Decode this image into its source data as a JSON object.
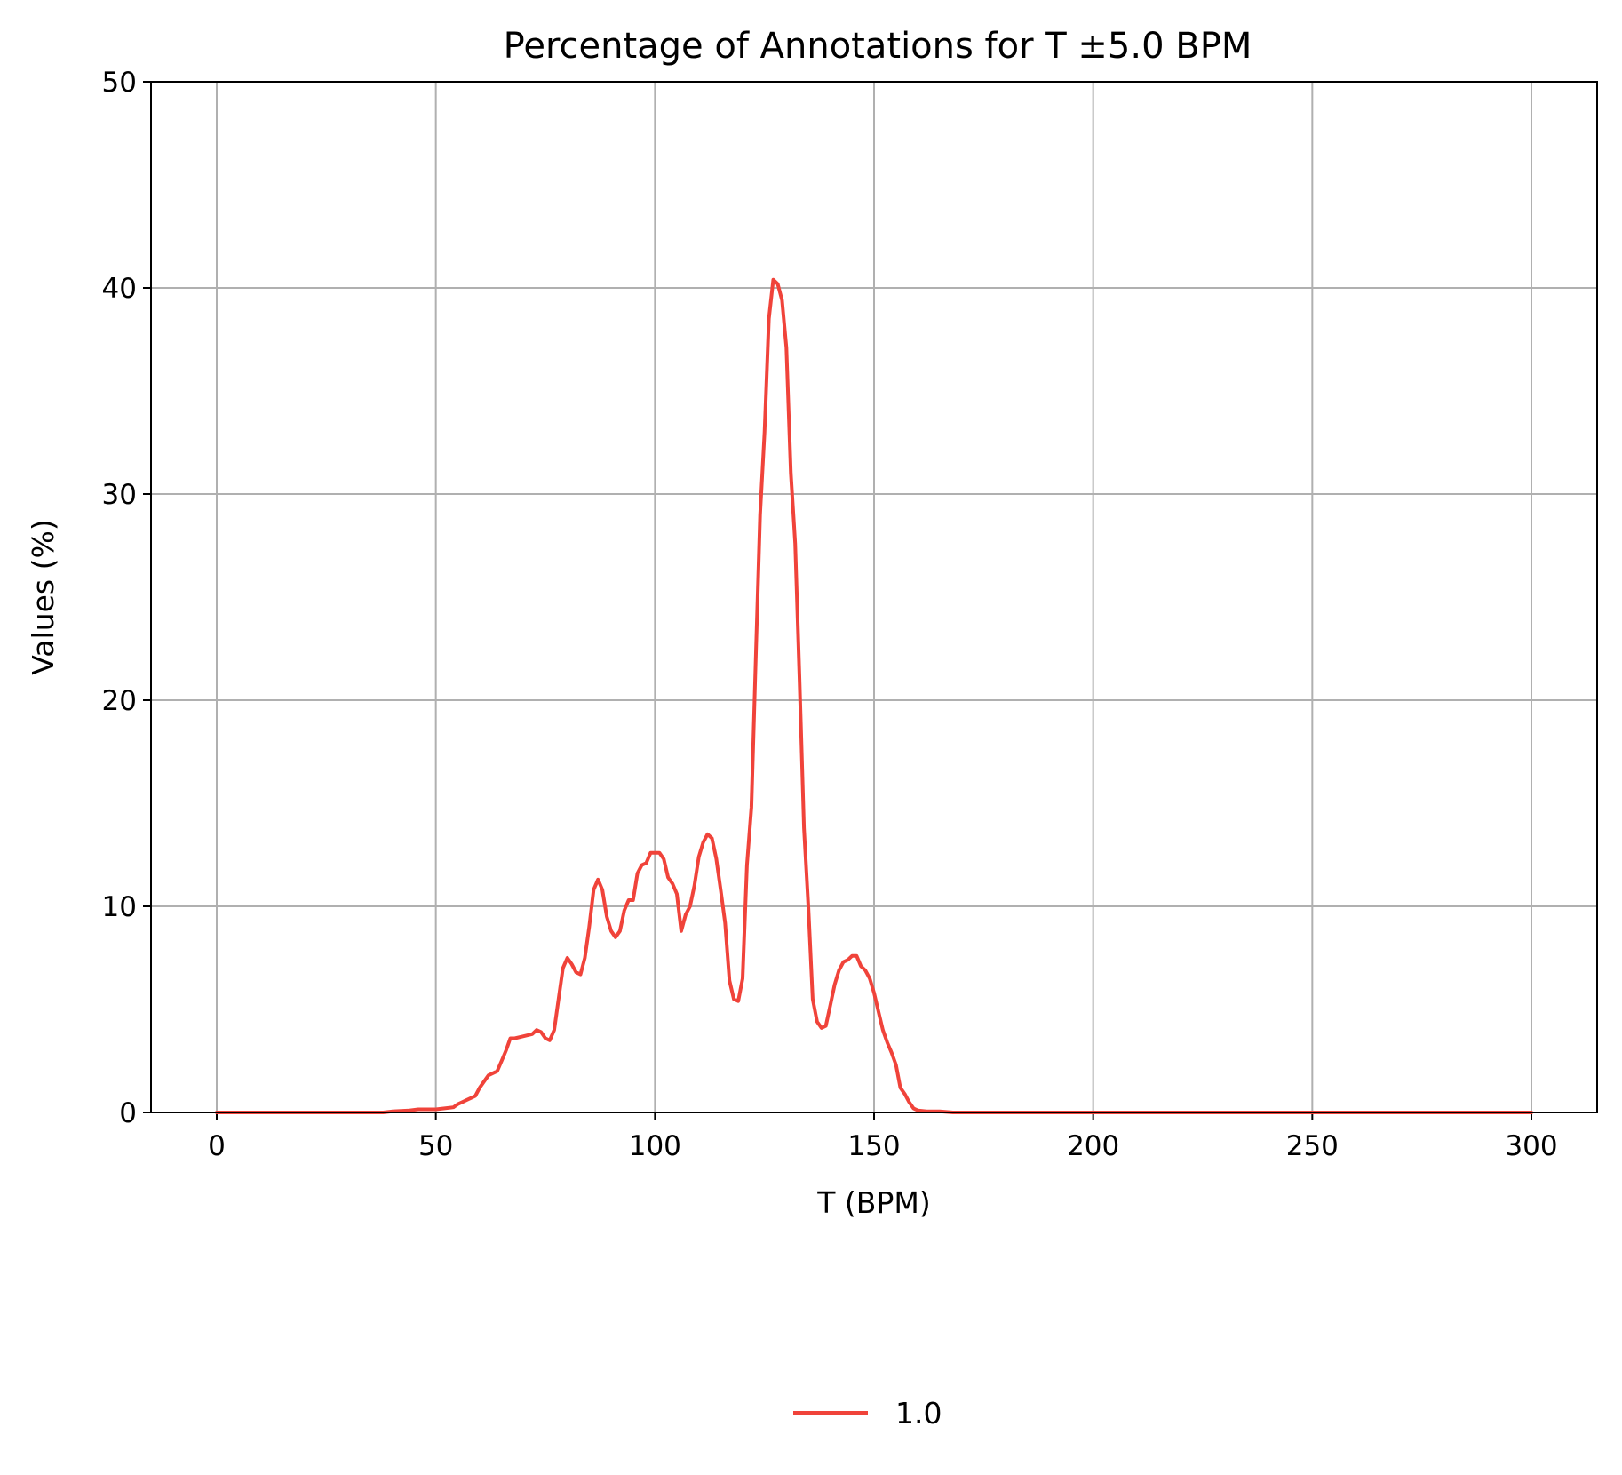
{
  "chart_data": {
    "type": "line",
    "title": "Percentage of Annotations for T ±5.0 BPM",
    "xlabel": "T (BPM)",
    "ylabel": "Values (%)",
    "xlim": [
      -15,
      315
    ],
    "ylim": [
      0,
      50
    ],
    "xticks": [
      0,
      50,
      100,
      150,
      200,
      250,
      300
    ],
    "yticks": [
      0,
      10,
      20,
      30,
      40,
      50
    ],
    "grid": true,
    "legend_position": "bottom-center",
    "series": [
      {
        "name": "1.0",
        "color": "#f0433a",
        "points": [
          [
            0,
            0
          ],
          [
            10,
            0
          ],
          [
            20,
            0
          ],
          [
            30,
            0
          ],
          [
            38,
            0
          ],
          [
            40,
            0.05
          ],
          [
            44,
            0.1
          ],
          [
            46,
            0.15
          ],
          [
            50,
            0.15
          ],
          [
            52,
            0.2
          ],
          [
            54,
            0.25
          ],
          [
            55,
            0.4
          ],
          [
            56,
            0.5
          ],
          [
            57,
            0.6
          ],
          [
            58,
            0.7
          ],
          [
            59,
            0.8
          ],
          [
            60,
            1.2
          ],
          [
            61,
            1.5
          ],
          [
            62,
            1.8
          ],
          [
            64,
            2.0
          ],
          [
            65,
            2.5
          ],
          [
            66,
            3.0
          ],
          [
            67,
            3.6
          ],
          [
            68,
            3.6
          ],
          [
            70,
            3.7
          ],
          [
            72,
            3.8
          ],
          [
            73,
            4.0
          ],
          [
            74,
            3.9
          ],
          [
            75,
            3.6
          ],
          [
            76,
            3.5
          ],
          [
            77,
            4.0
          ],
          [
            78,
            5.5
          ],
          [
            79,
            7.0
          ],
          [
            80,
            7.5
          ],
          [
            81,
            7.2
          ],
          [
            82,
            6.8
          ],
          [
            83,
            6.7
          ],
          [
            84,
            7.5
          ],
          [
            85,
            9.0
          ],
          [
            86,
            10.8
          ],
          [
            87,
            11.3
          ],
          [
            88,
            10.8
          ],
          [
            89,
            9.5
          ],
          [
            90,
            8.8
          ],
          [
            91,
            8.5
          ],
          [
            92,
            8.8
          ],
          [
            93,
            9.8
          ],
          [
            94,
            10.3
          ],
          [
            95,
            10.3
          ],
          [
            96,
            11.6
          ],
          [
            97,
            12.0
          ],
          [
            98,
            12.1
          ],
          [
            99,
            12.6
          ],
          [
            100,
            12.6
          ],
          [
            101,
            12.6
          ],
          [
            102,
            12.3
          ],
          [
            103,
            11.4
          ],
          [
            104,
            11.1
          ],
          [
            105,
            10.6
          ],
          [
            106,
            8.8
          ],
          [
            107,
            9.6
          ],
          [
            108,
            10.0
          ],
          [
            109,
            11.0
          ],
          [
            110,
            12.4
          ],
          [
            111,
            13.1
          ],
          [
            112,
            13.5
          ],
          [
            113,
            13.3
          ],
          [
            114,
            12.3
          ],
          [
            115,
            10.8
          ],
          [
            116,
            9.2
          ],
          [
            117,
            6.4
          ],
          [
            118,
            5.5
          ],
          [
            119,
            5.4
          ],
          [
            120,
            6.5
          ],
          [
            121,
            12.0
          ],
          [
            122,
            14.8
          ],
          [
            123,
            22.0
          ],
          [
            124,
            29.0
          ],
          [
            125,
            33.0
          ],
          [
            126,
            38.5
          ],
          [
            127,
            40.4
          ],
          [
            128,
            40.2
          ],
          [
            129,
            39.4
          ],
          [
            130,
            37.1
          ],
          [
            131,
            31.0
          ],
          [
            132,
            27.6
          ],
          [
            133,
            21.0
          ],
          [
            134,
            13.8
          ],
          [
            135,
            10.0
          ],
          [
            136,
            5.5
          ],
          [
            137,
            4.4
          ],
          [
            138,
            4.1
          ],
          [
            139,
            4.2
          ],
          [
            140,
            5.2
          ],
          [
            141,
            6.2
          ],
          [
            142,
            6.9
          ],
          [
            143,
            7.3
          ],
          [
            144,
            7.4
          ],
          [
            145,
            7.6
          ],
          [
            146,
            7.6
          ],
          [
            147,
            7.1
          ],
          [
            148,
            6.9
          ],
          [
            149,
            6.5
          ],
          [
            150,
            5.8
          ],
          [
            151,
            4.9
          ],
          [
            152,
            4.0
          ],
          [
            153,
            3.4
          ],
          [
            154,
            2.9
          ],
          [
            155,
            2.3
          ],
          [
            156,
            1.2
          ],
          [
            157,
            0.9
          ],
          [
            158,
            0.5
          ],
          [
            159,
            0.2
          ],
          [
            160,
            0.1
          ],
          [
            162,
            0.05
          ],
          [
            165,
            0.05
          ],
          [
            168,
            0
          ],
          [
            180,
            0
          ],
          [
            200,
            0
          ],
          [
            220,
            0
          ],
          [
            240,
            0
          ],
          [
            260,
            0
          ],
          [
            280,
            0
          ],
          [
            300,
            0
          ]
        ]
      }
    ]
  }
}
